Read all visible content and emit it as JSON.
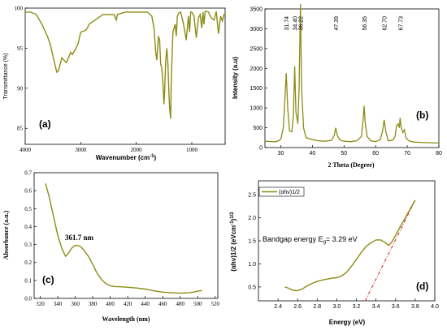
{
  "chart_data": [
    {
      "panel": "(a)",
      "type": "line",
      "xlabel": "Wavenumber (cm",
      "xlabel_sup": "-1",
      "xlabel_end": ")",
      "ylabel": "Transmittance (%)",
      "xlim": [
        4000,
        400
      ],
      "ylim": [
        83,
        100
      ],
      "xticks": [
        4000,
        3000,
        2000,
        1000
      ],
      "yticks": [
        85,
        90,
        95,
        100
      ],
      "color": "#8c8c14",
      "x": [
        4000,
        3900,
        3800,
        3700,
        3600,
        3550,
        3500,
        3460,
        3430,
        3400,
        3370,
        3340,
        3300,
        3260,
        3220,
        3180,
        3150,
        3100,
        3050,
        3000,
        2920,
        2880,
        2850,
        2600,
        2400,
        2360,
        2340,
        2200,
        2000,
        1800,
        1720,
        1680,
        1650,
        1630,
        1600,
        1580,
        1560,
        1540,
        1520,
        1500,
        1490,
        1470,
        1450,
        1430,
        1410,
        1400,
        1380,
        1370,
        1340,
        1300,
        1280,
        1260,
        1230,
        1200,
        1150,
        1100,
        1080,
        1060,
        1040,
        1020,
        1000,
        960,
        920,
        880,
        850,
        820,
        800,
        780,
        760,
        740,
        700,
        650,
        600,
        560,
        520,
        480,
        450,
        420,
        400
      ],
      "y": [
        99.5,
        99.5,
        99.2,
        98,
        96.5,
        95.5,
        94,
        92.8,
        92,
        92.2,
        93,
        93.8,
        93.5,
        93.2,
        93.8,
        94.5,
        94.2,
        94.8,
        95.5,
        97,
        97.2,
        97.5,
        98,
        99.2,
        99.2,
        98.5,
        99.2,
        99.5,
        99.5,
        99.5,
        99,
        97.5,
        94.5,
        93.5,
        96.5,
        96,
        93,
        92.5,
        90.5,
        88,
        89.5,
        93.5,
        95,
        93,
        89,
        87.5,
        86.2,
        91,
        97,
        98,
        96.5,
        99,
        99.4,
        99.5,
        98,
        96,
        97.5,
        99,
        97,
        99.5,
        99.5,
        99,
        96.3,
        98.8,
        99.2,
        97.5,
        99.5,
        98,
        99.6,
        99.6,
        99.5,
        98.8,
        98.5,
        99.6,
        96.8,
        99,
        98.4,
        99.2,
        99.3
      ]
    },
    {
      "panel": "(b)",
      "type": "line",
      "xlabel": "2 Theta (Degree)",
      "ylabel": "Intensity (a.u)",
      "xlim": [
        25,
        80
      ],
      "ylim": [
        0,
        3500
      ],
      "xticks": [
        30,
        40,
        50,
        60,
        70,
        80
      ],
      "yticks": [
        0,
        500,
        1000,
        1500,
        2000,
        2500,
        3000,
        3500
      ],
      "peak_labels": [
        "31.74",
        "34.40",
        "36.22",
        "47.39",
        "56.35",
        "62.70",
        "67.73"
      ],
      "color": "#8c8c14",
      "x": [
        25,
        26,
        27,
        28,
        29,
        30,
        30.8,
        31.3,
        31.74,
        32.2,
        32.8,
        33.5,
        34,
        34.4,
        34.8,
        35.4,
        35.8,
        36.22,
        36.6,
        37.2,
        38,
        40,
        42,
        44,
        46,
        46.9,
        47.39,
        47.9,
        48.6,
        50,
        52,
        54,
        55.5,
        56,
        56.35,
        56.7,
        57.3,
        58.5,
        60,
        61.5,
        62.2,
        62.7,
        63.2,
        64,
        65.5,
        66.2,
        66.6,
        67.1,
        67.5,
        67.73,
        68.1,
        68.6,
        69.1,
        69.6,
        70.5,
        72,
        74,
        76,
        78,
        80
      ],
      "y": [
        160,
        155,
        150,
        145,
        160,
        210,
        500,
        1200,
        1880,
        1000,
        420,
        400,
        800,
        2050,
        900,
        600,
        1500,
        3620,
        1500,
        500,
        250,
        200,
        170,
        160,
        180,
        300,
        500,
        300,
        200,
        160,
        150,
        170,
        280,
        650,
        1050,
        650,
        280,
        170,
        150,
        200,
        420,
        700,
        420,
        170,
        190,
        300,
        550,
        600,
        500,
        750,
        500,
        380,
        450,
        250,
        170,
        140,
        130,
        125,
        120,
        115
      ]
    },
    {
      "panel": "(c)",
      "type": "line",
      "xlabel": "Wavelength (nm)",
      "ylabel": "Absorbance (a.u.)",
      "xlim": [
        313,
        523
      ],
      "ylim": [
        0,
        0.7
      ],
      "xticks": [
        320,
        340,
        360,
        380,
        400,
        420,
        440,
        460,
        480,
        500,
        520
      ],
      "yticks": [
        0.0,
        0.1,
        0.2,
        0.3,
        0.4,
        0.5,
        0.6,
        0.7
      ],
      "annotation": "361.7 nm",
      "color": "#8c8c14",
      "x": [
        326,
        330,
        335,
        340,
        345,
        349,
        352,
        356,
        359,
        361.7,
        364,
        367,
        370,
        375,
        380,
        385,
        390,
        395,
        400,
        405,
        410,
        420,
        430,
        440,
        450,
        460,
        470,
        480,
        490,
        495,
        500,
        505
      ],
      "y": [
        0.64,
        0.57,
        0.46,
        0.35,
        0.275,
        0.235,
        0.25,
        0.28,
        0.292,
        0.295,
        0.293,
        0.285,
        0.268,
        0.235,
        0.19,
        0.14,
        0.105,
        0.082,
        0.07,
        0.066,
        0.065,
        0.062,
        0.058,
        0.052,
        0.042,
        0.035,
        0.031,
        0.029,
        0.031,
        0.035,
        0.04,
        0.044
      ]
    },
    {
      "panel": "(d)",
      "type": "line",
      "xlabel": "Energy (eV)",
      "ylabel": "(αhν)1/2 (eVcm",
      "ylabel_sup": "-1",
      "ylabel_end": ")",
      "ylabel_sup2": "1/2",
      "xlim": [
        2.2,
        4.0
      ],
      "ylim": [
        0.2,
        2.8
      ],
      "xticks": [
        2.4,
        2.6,
        2.8,
        3.0,
        3.2,
        3.4,
        3.6,
        3.8,
        4.0
      ],
      "yticks": [
        0.5,
        1.0,
        1.5,
        2.0,
        2.5
      ],
      "legend": "(αhν)1/2",
      "annotation_prefix": "Bandgap energy E",
      "annotation_sub": "g",
      "annotation_suffix": "= 3.29 eV",
      "series": [
        {
          "name": "(αhν)1/2",
          "color": "#8c8c14",
          "x": [
            2.47,
            2.5,
            2.55,
            2.6,
            2.65,
            2.7,
            2.75,
            2.8,
            2.85,
            2.9,
            2.95,
            3.0,
            3.05,
            3.1,
            3.15,
            3.2,
            3.25,
            3.3,
            3.35,
            3.4,
            3.45,
            3.5,
            3.53,
            3.56,
            3.6,
            3.65,
            3.7,
            3.75,
            3.8
          ],
          "y": [
            0.5,
            0.48,
            0.43,
            0.42,
            0.46,
            0.53,
            0.58,
            0.62,
            0.65,
            0.67,
            0.69,
            0.7,
            0.74,
            0.82,
            0.95,
            1.1,
            1.25,
            1.38,
            1.46,
            1.52,
            1.52,
            1.45,
            1.4,
            1.47,
            1.62,
            1.82,
            2.0,
            2.2,
            2.38
          ]
        },
        {
          "name": "fit",
          "color": "#d03030",
          "style": "dash-dot",
          "x": [
            3.29,
            3.8
          ],
          "y": [
            0.2,
            2.38
          ]
        }
      ]
    }
  ]
}
